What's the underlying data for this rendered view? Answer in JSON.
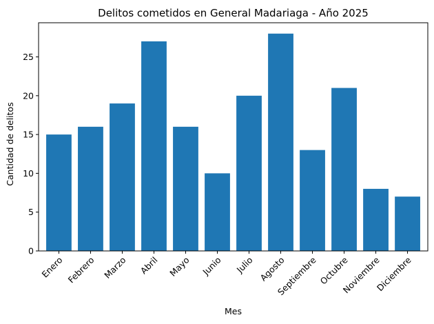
{
  "chart_data": {
    "type": "bar",
    "title": "Delitos cometidos en General Madariaga - Año 2025",
    "xlabel": "Mes",
    "ylabel": "Cantidad de delitos",
    "categories": [
      "Enero",
      "Febrero",
      "Marzo",
      "Abril",
      "Mayo",
      "Junio",
      "Julio",
      "Agosto",
      "Septiembre",
      "Octubre",
      "Noviembre",
      "Diciembre"
    ],
    "values": [
      15,
      16,
      19,
      27,
      16,
      10,
      20,
      28,
      13,
      21,
      8,
      7
    ],
    "ylim": [
      0,
      29.4
    ],
    "yticks": [
      0,
      5,
      10,
      15,
      20,
      25
    ],
    "bar_color": "#1f77b4",
    "grid": false
  }
}
